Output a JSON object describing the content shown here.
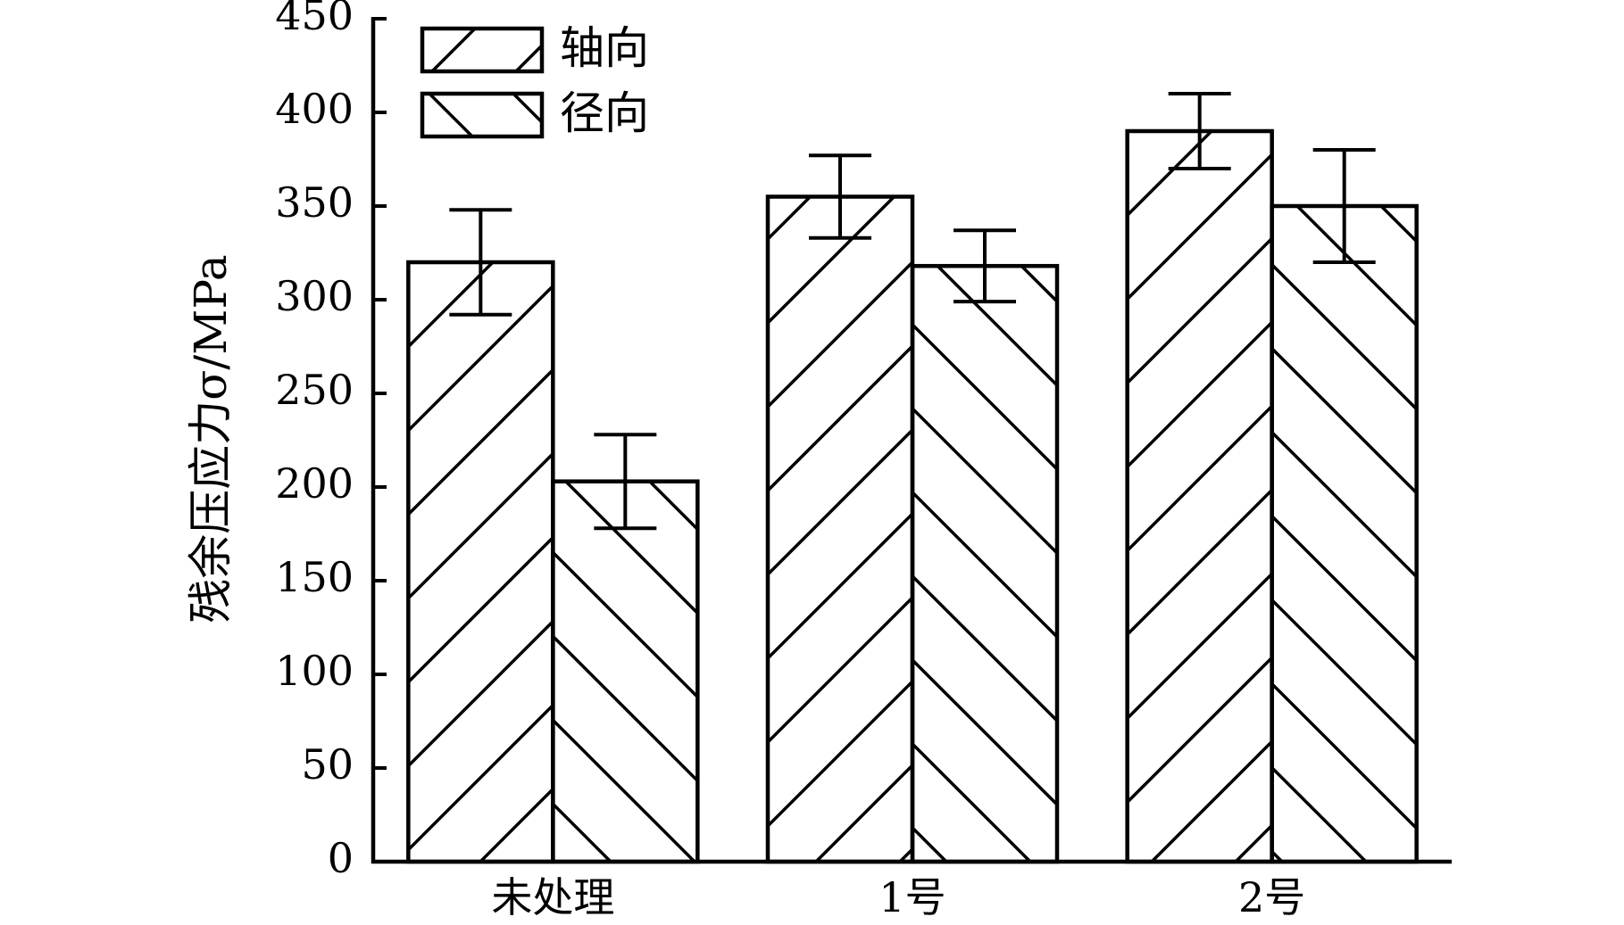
{
  "chart_data": {
    "type": "bar",
    "ylabel": "残余压应力σ/MPa",
    "categories": [
      "未处理",
      "1号",
      "2号"
    ],
    "series": [
      {
        "name": "轴向",
        "color": "#000000",
        "hatch": "/",
        "values": [
          320,
          355,
          390
        ],
        "errors": [
          28,
          22,
          20
        ]
      },
      {
        "name": "径向",
        "color": "#000000",
        "hatch": "\\",
        "values": [
          203,
          318,
          350
        ],
        "errors": [
          25,
          19,
          30
        ]
      }
    ],
    "ylim": [
      0,
      450
    ],
    "yticks": [
      0,
      50,
      100,
      150,
      200,
      250,
      300,
      350,
      400,
      450
    ],
    "legend": "upper left"
  }
}
